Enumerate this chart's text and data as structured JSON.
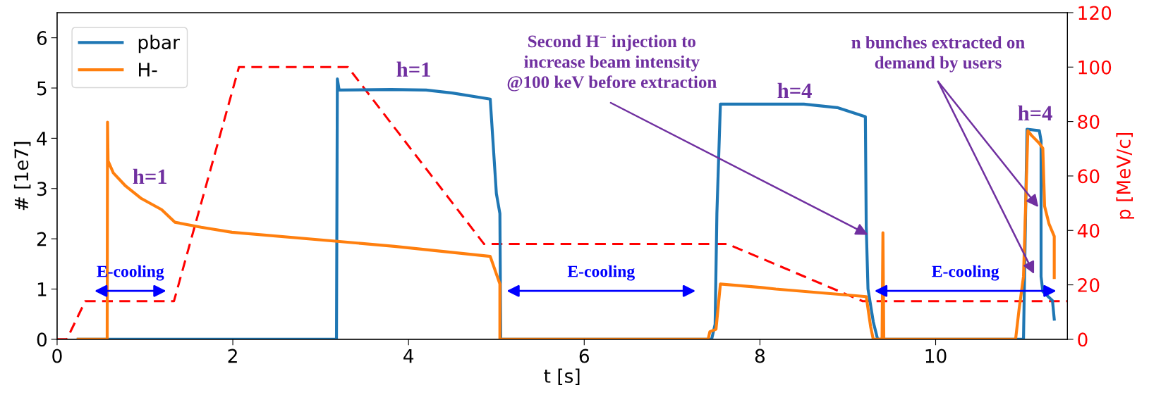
{
  "chart_data": {
    "type": "line",
    "xlabel": "t [s]",
    "ylabel": "# [1e7]",
    "y2label": "p [MeV/c]",
    "xlim": [
      0,
      11.5
    ],
    "xticks": [
      0,
      2,
      4,
      6,
      8,
      10
    ],
    "ylim": [
      0,
      6.5
    ],
    "yticks": [
      0,
      1,
      2,
      3,
      4,
      5,
      6
    ],
    "y2lim": [
      0,
      120
    ],
    "y2ticks": [
      0,
      20,
      40,
      60,
      80,
      100,
      120
    ],
    "legend": "top left",
    "grid": false,
    "series": [
      {
        "name": "pbar",
        "color": "#1f77b4",
        "x": [
          0.24,
          3.18,
          3.19,
          3.21,
          3.8,
          4.2,
          4.5,
          4.93,
          5.0,
          5.04,
          5.05,
          7.45,
          7.49,
          7.51,
          7.55,
          8.02,
          8.5,
          8.88,
          9.2,
          9.21,
          9.23,
          9.29,
          9.34,
          11.0,
          11.04,
          11.18,
          11.2,
          11.2,
          11.22,
          11.33,
          11.35
        ],
        "values": [
          0,
          0,
          5.18,
          4.96,
          4.97,
          4.96,
          4.9,
          4.78,
          2.9,
          2.5,
          0,
          0,
          0.3,
          2.5,
          4.68,
          4.68,
          4.68,
          4.61,
          4.43,
          2.25,
          1.0,
          0.35,
          0,
          0,
          4.18,
          4.15,
          3.95,
          1.25,
          0.95,
          0.77,
          0.4
        ]
      },
      {
        "name": "H-",
        "color": "#ff7f0e",
        "x": [
          0.24,
          0.57,
          0.574,
          0.58,
          0.64,
          0.78,
          0.96,
          1.19,
          1.34,
          1.64,
          1.99,
          3.19,
          3.84,
          4.93,
          5.04,
          5.04,
          7.41,
          7.43,
          7.5,
          7.55,
          8.02,
          8.18,
          9.21,
          9.26,
          9.29,
          9.39,
          9.4,
          9.41,
          10.91,
          10.95,
          11.0,
          11.05,
          11.09,
          11.18,
          11.22,
          11.24,
          11.29,
          11.35,
          11.35
        ],
        "values": [
          0,
          0,
          4.32,
          3.55,
          3.31,
          3.05,
          2.8,
          2.58,
          2.33,
          2.23,
          2.13,
          1.95,
          1.85,
          1.65,
          1.1,
          0,
          0,
          0.15,
          0.2,
          1.1,
          1.03,
          1.0,
          0.85,
          0.25,
          0,
          0,
          2.12,
          0,
          0,
          0.6,
          1.25,
          4.15,
          4.06,
          3.9,
          3.8,
          2.65,
          2.3,
          2.05,
          1.23
        ]
      },
      {
        "color": "#ff0000",
        "axis": "y2",
        "line_style": "dashed",
        "x": [
          0,
          0.11,
          0.32,
          1.33,
          2.07,
          3.31,
          4.86,
          7.63,
          9.17,
          11.5
        ],
        "values": [
          0,
          0,
          14,
          14,
          100,
          100,
          35,
          35,
          14,
          14
        ]
      }
    ],
    "annotations": [
      "h=1",
      "h=1",
      "h=4",
      "h=4",
      {
        "text": "Second H$^{−}$ injection to\nincrease beam intensity\n@100 keV before extraction",
        "x": 9.23,
        "y": 2.08
      },
      {
        "text": "n bunches extracted on\ndemand by users",
        "x": 11.17,
        "y": 2.63
      },
      "E-cooling",
      "E-cooling",
      "E-cooling"
    ]
  }
}
